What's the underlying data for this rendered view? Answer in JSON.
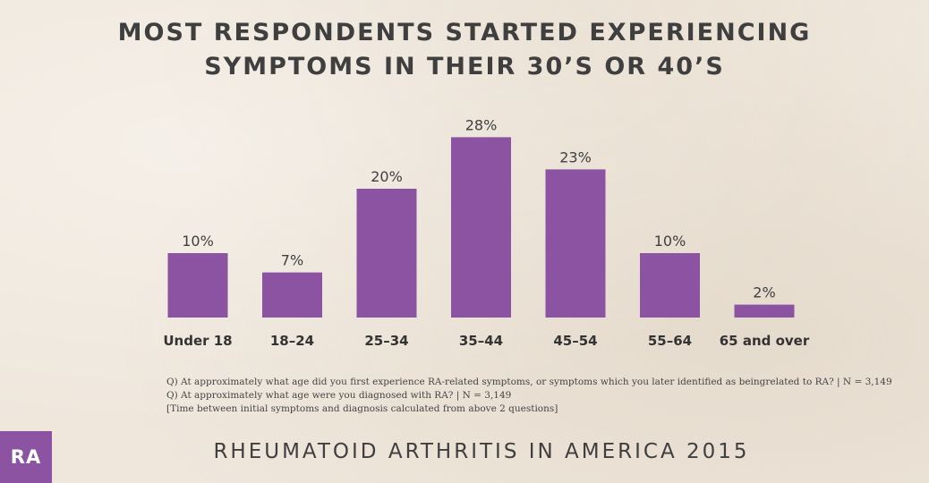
{
  "header": {
    "title_line1": "MOST RESPONDENTS STARTED EXPERIENCING",
    "title_line2": "SYMPTOMS IN THEIR 30’S OR 40’S"
  },
  "chart_data": {
    "type": "bar",
    "title": "MOST RESPONDENTS STARTED EXPERIENCING SYMPTOMS IN THEIR 30’S OR 40’S",
    "categories": [
      "Under 18",
      "18–24",
      "25–34",
      "35–44",
      "45–54",
      "55–64",
      "65 and over"
    ],
    "values": [
      10,
      7,
      20,
      28,
      23,
      10,
      2
    ],
    "value_labels": [
      "10%",
      "7%",
      "20%",
      "28%",
      "23%",
      "10%",
      "2%"
    ],
    "unit": "%",
    "ylim": [
      0,
      30
    ],
    "grid": false,
    "bar_color": "#8c53a3"
  },
  "notes": [
    "Q) At approximately what age did you first experience RA-related symptoms, or symptoms which you later identified as beingrelated to RA? | N = 3,149",
    "Q) At approximately what age were you diagnosed with RA? | N = 3,149",
    "[Time between initial symptoms and diagnosis calculated from above 2 questions]"
  ],
  "logo": {
    "text": "RA"
  },
  "footer": {
    "text": "RHEUMATOID ARTHRITIS IN AMERICA 2015"
  }
}
